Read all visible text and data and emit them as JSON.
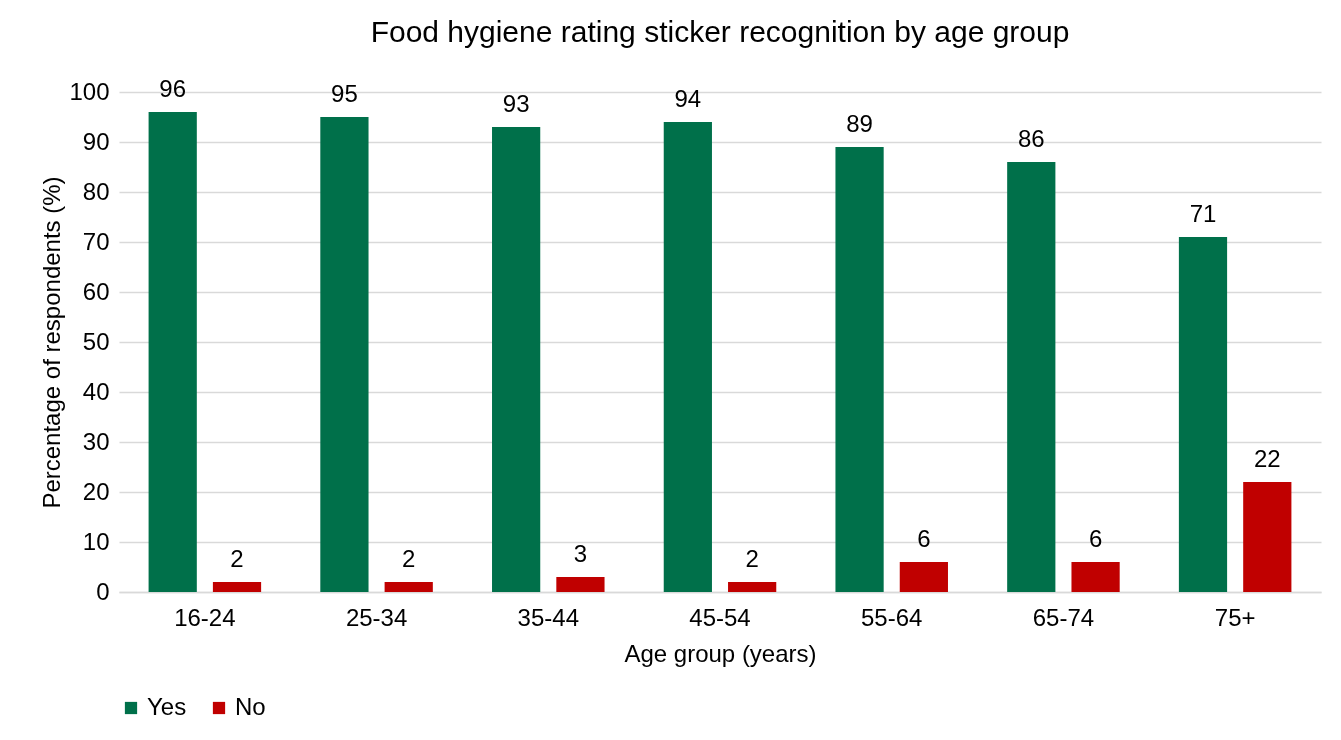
{
  "chart_data": {
    "type": "bar",
    "title": "Food hygiene rating sticker recognition by age group",
    "xlabel": "Age group (years)",
    "ylabel": "Percentage of respondents (%)",
    "categories": [
      "16-24",
      "25-34",
      "35-44",
      "45-54",
      "55-64",
      "65-74",
      "75+"
    ],
    "series": [
      {
        "name": "Yes",
        "color": "#00704a",
        "values": [
          96,
          95,
          93,
          94,
          89,
          86,
          71
        ]
      },
      {
        "name": "No",
        "color": "#c00000",
        "values": [
          2,
          2,
          3,
          2,
          6,
          6,
          22
        ]
      }
    ],
    "ylim": [
      0,
      100
    ],
    "yticks": [
      0,
      10,
      20,
      30,
      40,
      50,
      60,
      70,
      80,
      90,
      100
    ],
    "grid": "y",
    "legend": "bottom",
    "data_labels": true
  }
}
